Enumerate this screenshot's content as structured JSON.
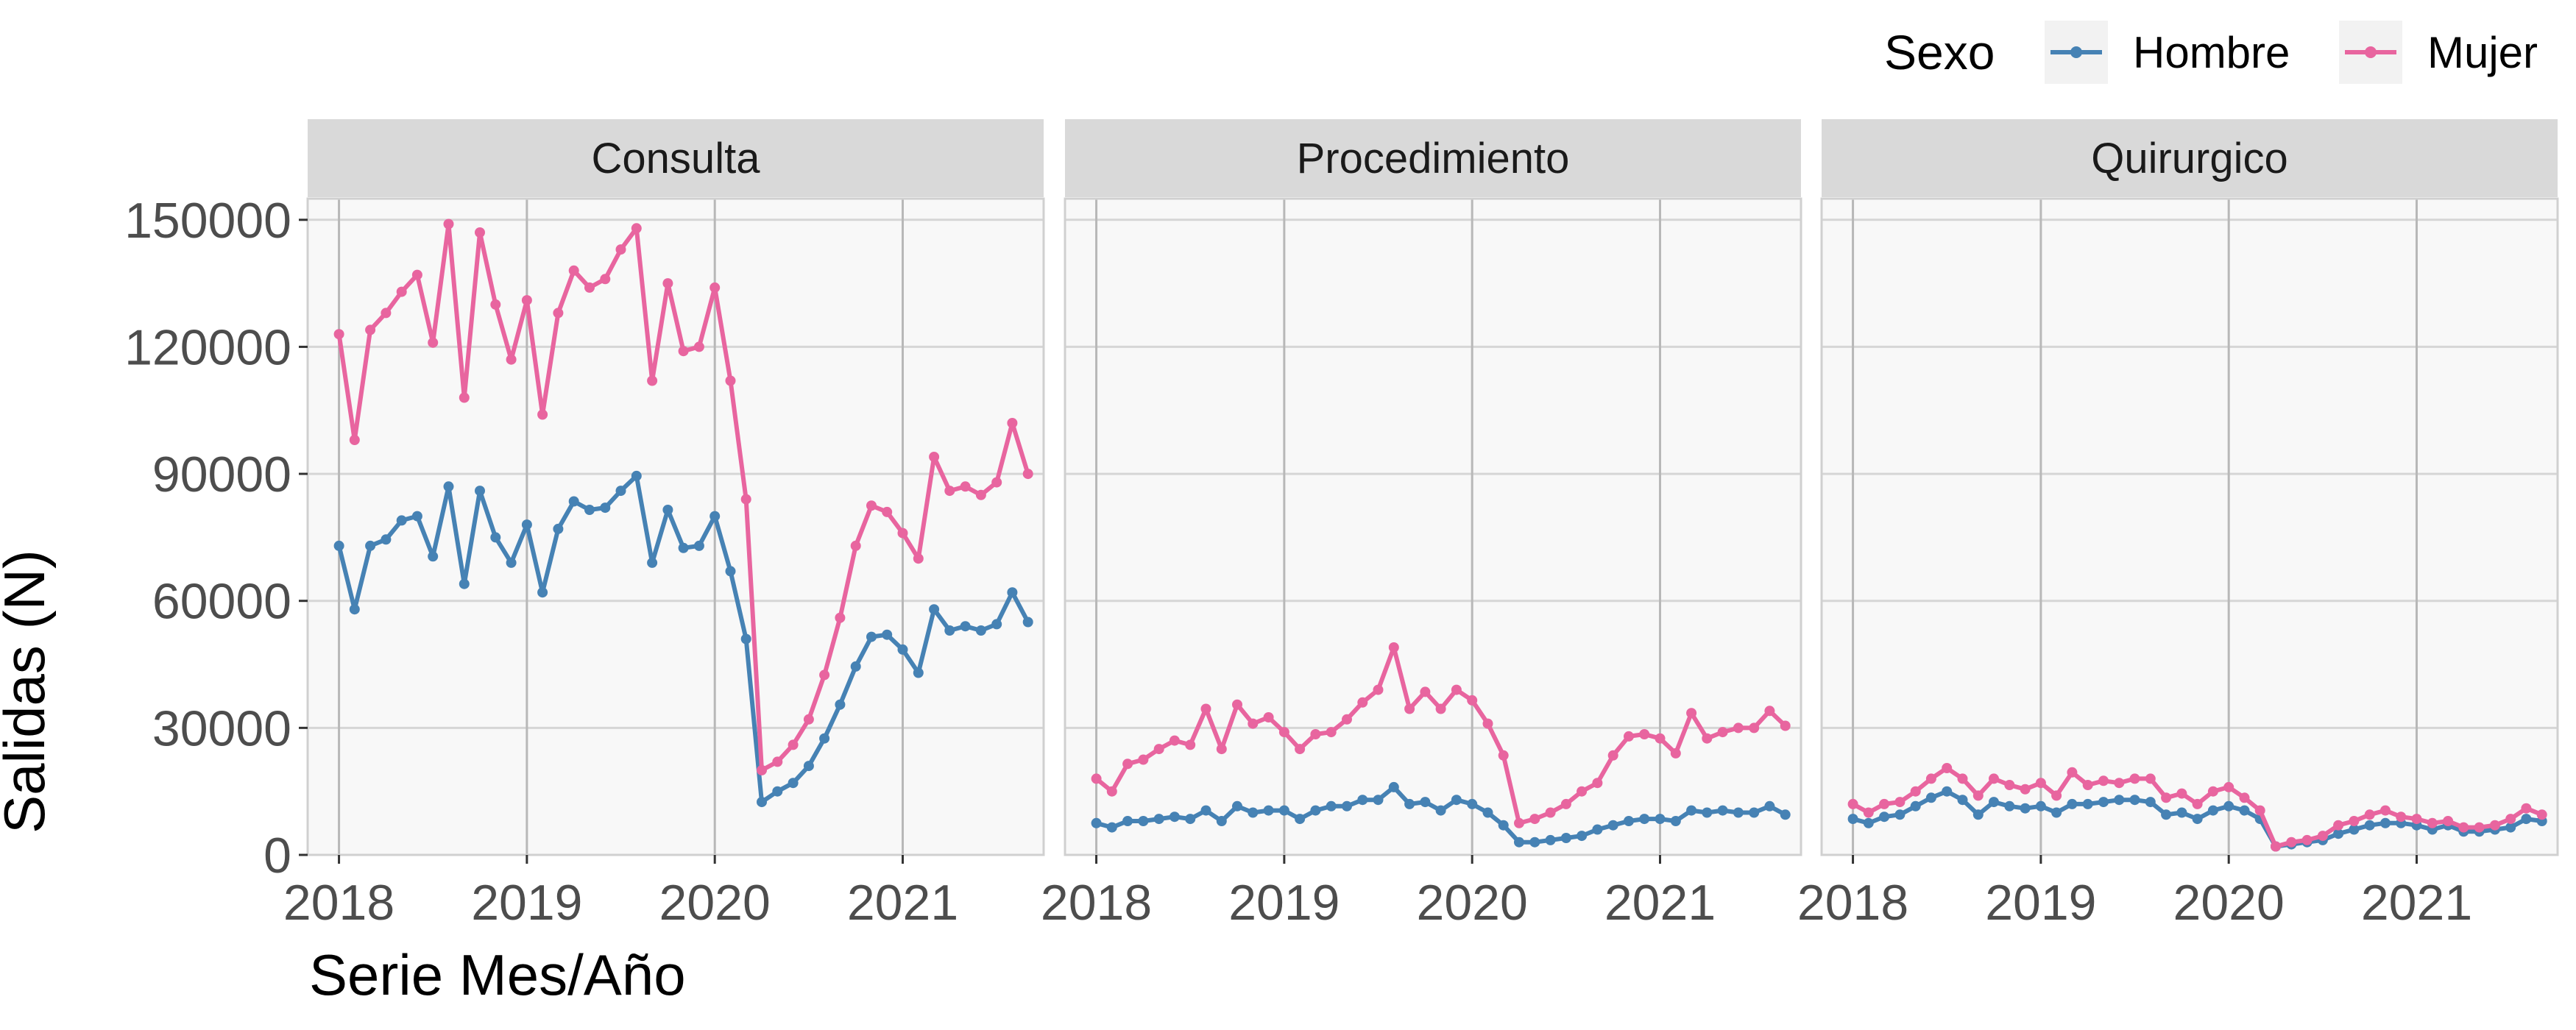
{
  "chart_data": {
    "type": "line",
    "ylabel": "Salidas (N)",
    "xlabel": "Serie Mes/Año",
    "legend": {
      "title": "Sexo",
      "position": "top-right"
    },
    "colors": {
      "Hombre": "#4682B4",
      "Mujer": "#E8659F"
    },
    "x_ticks": [
      "2018",
      "2019",
      "2020",
      "2021"
    ],
    "y_ticks": [
      "0",
      "30000",
      "60000",
      "90000",
      "120000",
      "150000"
    ],
    "ylim": [
      0,
      155000
    ],
    "xlim": [
      "2017-11",
      "2021-10"
    ],
    "grid": true,
    "months": [
      "2018-01",
      "2018-02",
      "2018-03",
      "2018-04",
      "2018-05",
      "2018-06",
      "2018-07",
      "2018-08",
      "2018-09",
      "2018-10",
      "2018-11",
      "2018-12",
      "2019-01",
      "2019-02",
      "2019-03",
      "2019-04",
      "2019-05",
      "2019-06",
      "2019-07",
      "2019-08",
      "2019-09",
      "2019-10",
      "2019-11",
      "2019-12",
      "2020-01",
      "2020-02",
      "2020-03",
      "2020-04",
      "2020-05",
      "2020-06",
      "2020-07",
      "2020-08",
      "2020-09",
      "2020-10",
      "2020-11",
      "2020-12",
      "2021-01",
      "2021-02",
      "2021-03",
      "2021-04",
      "2021-05",
      "2021-06",
      "2021-07",
      "2021-08",
      "2021-09"
    ],
    "panels": [
      {
        "name": "Consulta",
        "series": [
          {
            "name": "Hombre",
            "values": [
              73000,
              58000,
              73000,
              74500,
              79000,
              80000,
              70500,
              87000,
              64000,
              86000,
              75000,
              69000,
              78000,
              62000,
              77000,
              83500,
              81500,
              82000,
              86000,
              89500,
              69000,
              81500,
              72500,
              73000,
              80000,
              67000,
              51000,
              12500,
              15000,
              17000,
              21000,
              27500,
              35500,
              44500,
              51500,
              52000,
              48500,
              43000,
              58000,
              53000,
              54000,
              53000,
              54500,
              62000,
              55000
            ]
          },
          {
            "name": "Mujer",
            "values": [
              123000,
              98000,
              124000,
              128000,
              133000,
              137000,
              121000,
              149000,
              108000,
              147000,
              130000,
              117000,
              131000,
              104000,
              128000,
              138000,
              134000,
              136000,
              143000,
              148000,
              112000,
              135000,
              119000,
              120000,
              134000,
              112000,
              84000,
              20000,
              22000,
              26000,
              32000,
              42500,
              56000,
              73000,
              82500,
              81000,
              76000,
              70000,
              94000,
              86000,
              87000,
              85000,
              88000,
              102000,
              90000
            ]
          }
        ]
      },
      {
        "name": "Procedimiento",
        "series": [
          {
            "name": "Hombre",
            "values": [
              7500,
              6500,
              8000,
              8000,
              8500,
              9000,
              8500,
              10500,
              8000,
              11500,
              10000,
              10500,
              10500,
              8500,
              10500,
              11500,
              11500,
              13000,
              13000,
              16000,
              12000,
              12500,
              10500,
              13000,
              12000,
              10000,
              7000,
              3000,
              3000,
              3500,
              4000,
              4500,
              6000,
              7000,
              8000,
              8500,
              8500,
              8000,
              10500,
              10000,
              10500,
              10000,
              10000,
              11500,
              9500
            ]
          },
          {
            "name": "Mujer",
            "values": [
              18000,
              15000,
              21500,
              22500,
              25000,
              27000,
              26000,
              34500,
              25000,
              35500,
              31000,
              32500,
              29000,
              25000,
              28500,
              29000,
              32000,
              36000,
              39000,
              49000,
              34500,
              38500,
              34500,
              39000,
              36500,
              31000,
              23500,
              7500,
              8500,
              10000,
              12000,
              15000,
              17000,
              23500,
              28000,
              28500,
              27500,
              24000,
              33500,
              27500,
              29000,
              30000,
              30000,
              34000,
              30500
            ]
          }
        ]
      },
      {
        "name": "Quirurgico",
        "series": [
          {
            "name": "Hombre",
            "values": [
              8500,
              7500,
              9000,
              9500,
              11500,
              13500,
              15000,
              13000,
              9500,
              12500,
              11500,
              11000,
              11500,
              10000,
              12000,
              12000,
              12500,
              13000,
              13000,
              12500,
              9500,
              10000,
              8500,
              10500,
              11500,
              10500,
              8500,
              2000,
              2500,
              3000,
              3500,
              5000,
              6000,
              7000,
              7500,
              7500,
              7000,
              6000,
              7000,
              5500,
              5500,
              6000,
              6500,
              8500,
              8000
            ]
          },
          {
            "name": "Mujer",
            "values": [
              12000,
              10000,
              12000,
              12500,
              15000,
              18000,
              20500,
              18000,
              14000,
              18000,
              16500,
              15500,
              17000,
              14000,
              19500,
              16500,
              17500,
              17000,
              18000,
              18000,
              13500,
              14500,
              12000,
              15000,
              16000,
              13500,
              10500,
              2000,
              3000,
              3500,
              4500,
              7000,
              8000,
              9500,
              10500,
              9000,
              8500,
              7500,
              8000,
              6500,
              6500,
              7000,
              8500,
              11000,
              9500
            ]
          }
        ]
      }
    ]
  }
}
